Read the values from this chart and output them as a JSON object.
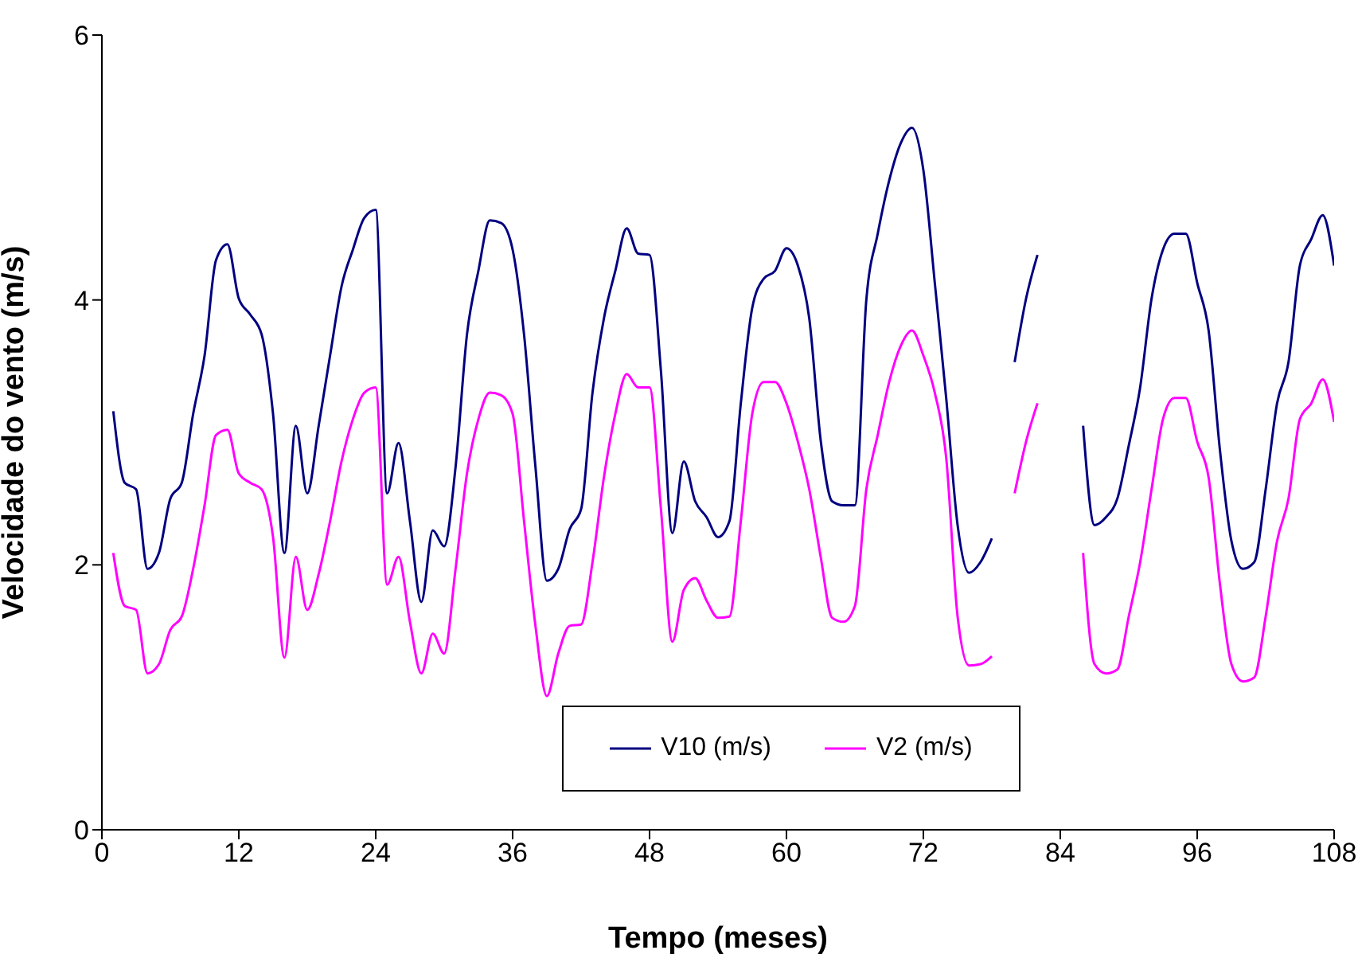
{
  "chart_data": {
    "type": "line",
    "xlabel": "Tempo (meses)",
    "ylabel": "Velocidade do vento (m/s)",
    "x": [
      1,
      2,
      3,
      4,
      5,
      6,
      7,
      8,
      9,
      10,
      11,
      12,
      13,
      14,
      15,
      16,
      17,
      18,
      19,
      20,
      21,
      22,
      23,
      24,
      25,
      26,
      27,
      28,
      29,
      30,
      31,
      32,
      33,
      34,
      35,
      36,
      37,
      38,
      39,
      40,
      41,
      42,
      43,
      44,
      45,
      46,
      47,
      48,
      49,
      50,
      51,
      52,
      53,
      54,
      55,
      56,
      57,
      58,
      59,
      60,
      61,
      62,
      63,
      64,
      65,
      66,
      67,
      68,
      69,
      70,
      71,
      72,
      73,
      74,
      75,
      76,
      77,
      78,
      79,
      80,
      81,
      82,
      83,
      84,
      85,
      86,
      87,
      88,
      89,
      90,
      91,
      92,
      93,
      94,
      95,
      96,
      97,
      98,
      99,
      100,
      101,
      102,
      103,
      104,
      105,
      106,
      107,
      108
    ],
    "series": [
      {
        "name": "V10 (m/s)",
        "color": "#000080",
        "values": [
          3.16,
          2.62,
          2.57,
          1.97,
          2.09,
          2.5,
          2.62,
          3.14,
          3.58,
          4.3,
          4.42,
          4.01,
          3.89,
          3.74,
          3.14,
          2.09,
          3.05,
          2.54,
          3.05,
          3.58,
          4.1,
          4.38,
          4.62,
          4.68,
          2.54,
          2.92,
          2.33,
          1.72,
          2.26,
          2.14,
          2.74,
          3.74,
          4.22,
          4.6,
          4.58,
          4.38,
          3.74,
          2.74,
          1.88,
          1.97,
          2.27,
          2.42,
          3.3,
          3.86,
          4.22,
          4.54,
          4.35,
          4.34,
          3.46,
          2.24,
          2.78,
          2.48,
          2.36,
          2.21,
          2.33,
          3.22,
          3.94,
          4.16,
          4.22,
          4.39,
          4.26,
          3.86,
          2.94,
          2.48,
          2.45,
          2.45,
          4.0,
          4.5,
          4.9,
          5.18,
          5.3,
          4.98,
          4.13,
          3.26,
          2.3,
          1.94,
          2.02,
          2.2,
          null,
          3.53,
          4.01,
          4.34,
          null,
          null,
          null,
          3.05,
          2.3,
          2.36,
          2.5,
          2.9,
          3.34,
          4.01,
          4.38,
          4.5,
          4.5,
          4.13,
          3.77,
          2.86,
          2.18,
          1.97,
          2.02,
          2.57,
          3.22,
          3.53,
          4.26,
          4.46,
          4.64,
          4.26
        ]
      },
      {
        "name": "V2 (m/s)",
        "color": "#ff00ff",
        "values": [
          2.09,
          1.69,
          1.66,
          1.18,
          1.25,
          1.51,
          1.61,
          1.97,
          2.45,
          2.98,
          3.02,
          2.69,
          2.62,
          2.57,
          2.21,
          1.3,
          2.06,
          1.66,
          1.93,
          2.33,
          2.78,
          3.1,
          3.3,
          3.34,
          1.85,
          2.06,
          1.57,
          1.18,
          1.48,
          1.33,
          1.97,
          2.69,
          3.1,
          3.3,
          3.28,
          3.14,
          2.33,
          1.54,
          1.01,
          1.33,
          1.54,
          1.55,
          2.02,
          2.66,
          3.14,
          3.44,
          3.34,
          3.34,
          2.42,
          1.42,
          1.81,
          1.9,
          1.73,
          1.6,
          1.61,
          2.33,
          3.14,
          3.38,
          3.38,
          3.22,
          2.93,
          2.57,
          2.06,
          1.6,
          1.57,
          1.69,
          2.57,
          2.98,
          3.38,
          3.65,
          3.77,
          3.58,
          3.3,
          2.81,
          1.61,
          1.24,
          1.25,
          1.31,
          null,
          2.54,
          2.93,
          3.22,
          null,
          null,
          null,
          2.09,
          1.25,
          1.18,
          1.21,
          1.61,
          2.02,
          2.57,
          3.1,
          3.26,
          3.26,
          2.93,
          2.66,
          1.85,
          1.25,
          1.12,
          1.15,
          1.61,
          2.18,
          2.5,
          3.1,
          3.22,
          3.4,
          3.08
        ]
      }
    ],
    "xlim": [
      0,
      108
    ],
    "xticks": [
      0,
      12,
      24,
      36,
      48,
      60,
      72,
      84,
      96,
      108
    ],
    "ylim": [
      0,
      6
    ],
    "yticks": [
      0,
      2,
      4,
      6
    ],
    "grid": false,
    "legend": "bottom",
    "marker": "none",
    "line_style": "solid"
  }
}
